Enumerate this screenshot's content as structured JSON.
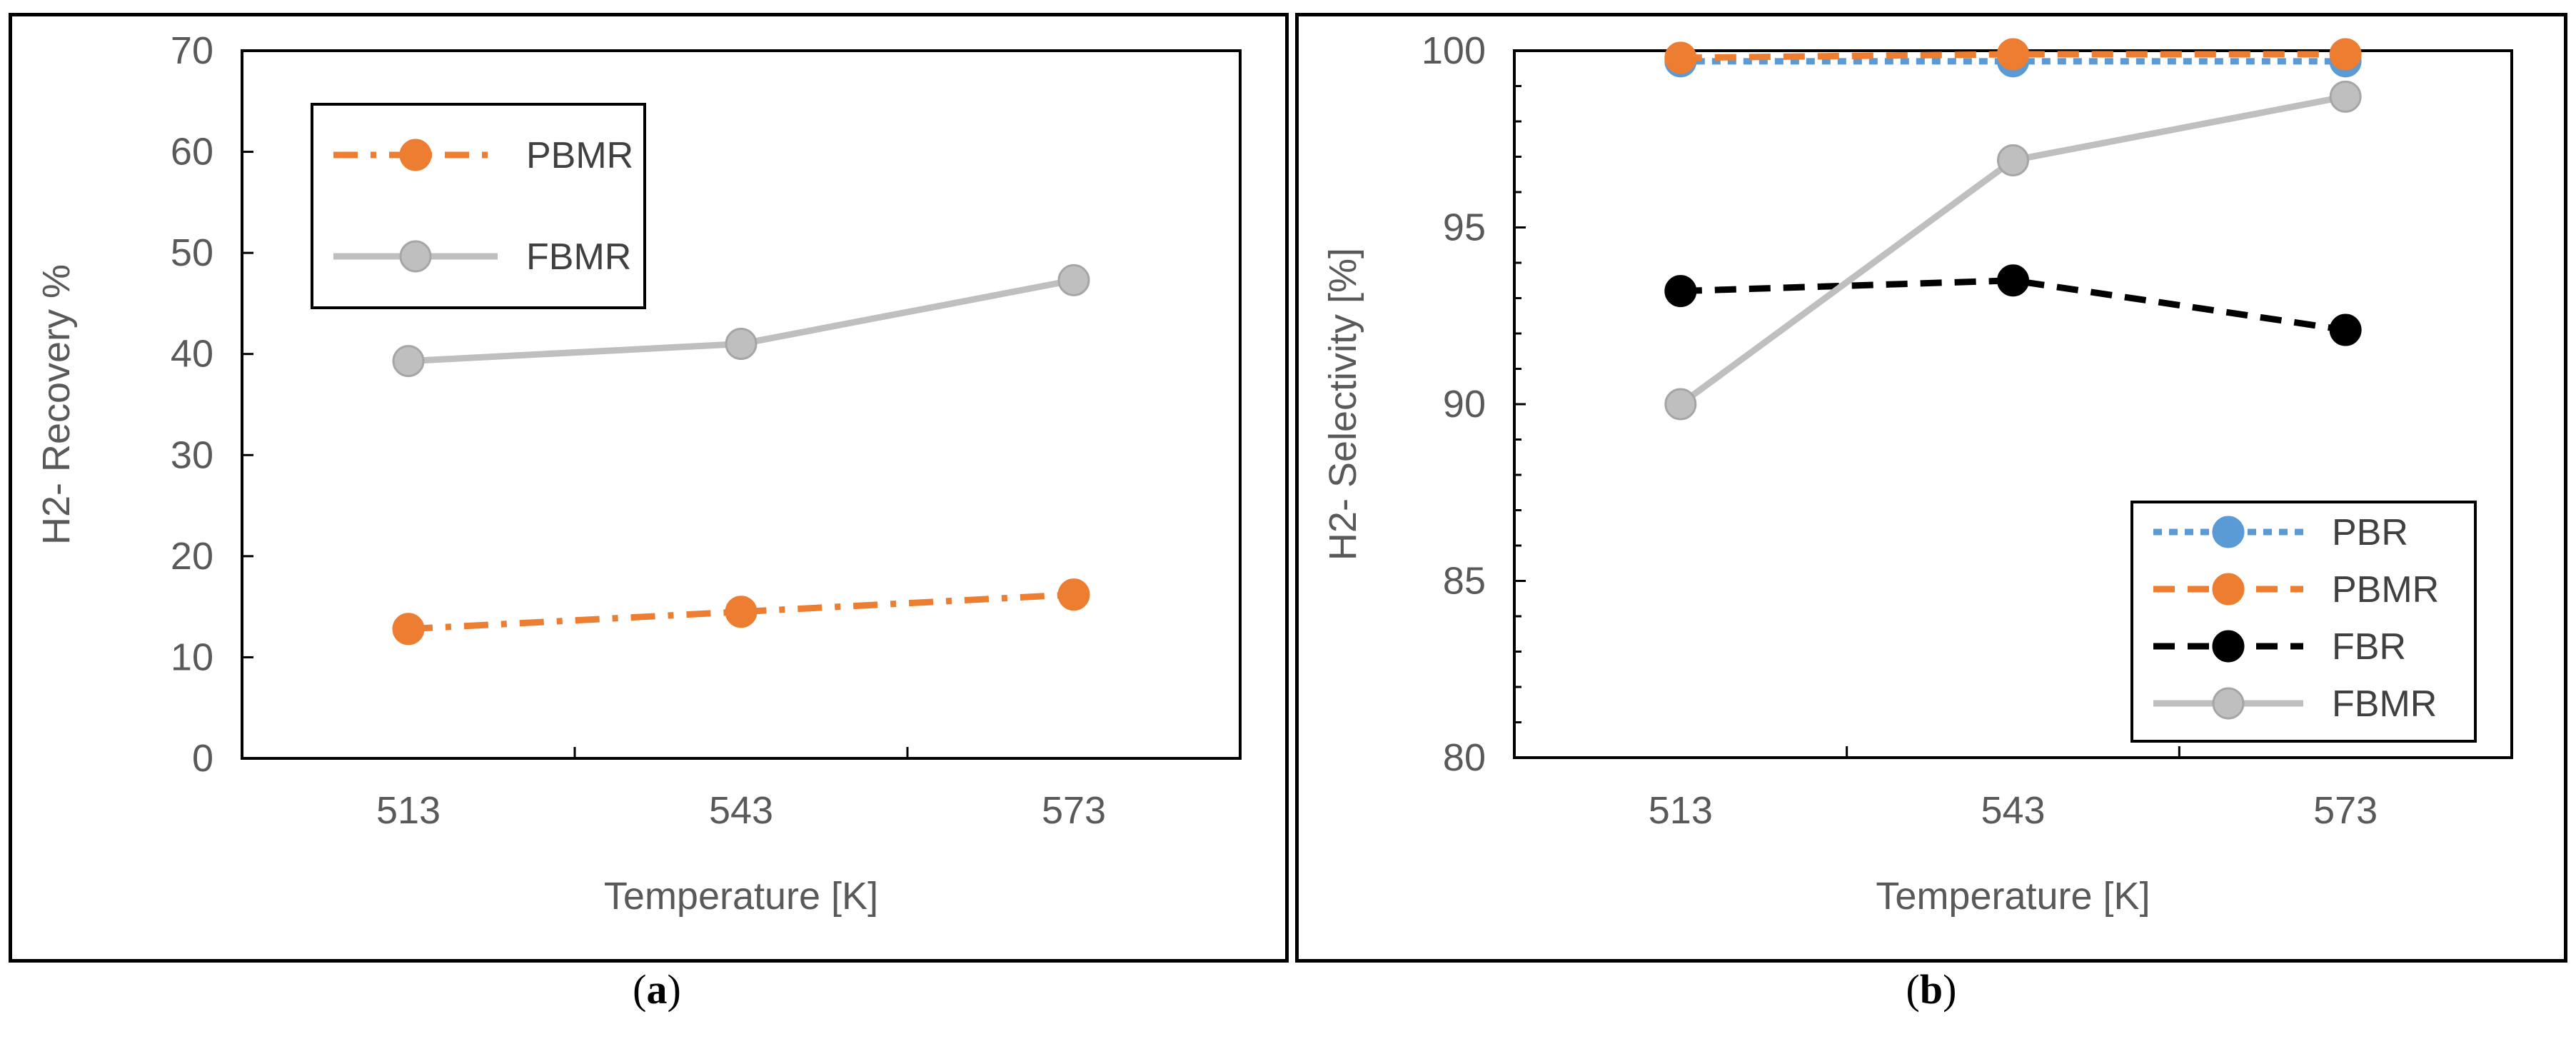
{
  "chart_data": [
    {
      "id": "a",
      "type": "line",
      "caption": "(a)",
      "caption_letter": "a",
      "xlabel": "Temperature [K]",
      "ylabel": "H2- Recovery %",
      "categories": [
        "513",
        "543",
        "573"
      ],
      "ylim": [
        0,
        70
      ],
      "yticks": [
        0,
        10,
        20,
        30,
        40,
        50,
        60,
        70
      ],
      "legend_position": "top-left",
      "series": [
        {
          "name": "PBMR",
          "values": [
            12.8,
            14.5,
            16.2
          ],
          "color": "#ED7D31",
          "dash": "dashdot",
          "marker": "circle"
        },
        {
          "name": "FBMR",
          "values": [
            39.3,
            41.0,
            47.3
          ],
          "color": "#BFBFBF",
          "dash": "solid",
          "marker": "circle"
        }
      ]
    },
    {
      "id": "b",
      "type": "line",
      "caption": "(b)",
      "caption_letter": "b",
      "xlabel": "Temperature [K]",
      "ylabel": "H2- Selectivity [%]",
      "categories": [
        "513",
        "543",
        "573"
      ],
      "ylim": [
        80,
        100
      ],
      "yticks": [
        80,
        85,
        90,
        95,
        100
      ],
      "legend_position": "bottom-right",
      "series": [
        {
          "name": "PBR",
          "values": [
            99.7,
            99.7,
            99.7
          ],
          "color": "#5B9BD5",
          "dash": "dotted",
          "marker": "circle"
        },
        {
          "name": "PBMR",
          "values": [
            99.8,
            99.9,
            99.9
          ],
          "color": "#ED7D31",
          "dash": "dashed",
          "marker": "circle"
        },
        {
          "name": "FBR",
          "values": [
            93.2,
            93.5,
            92.1
          ],
          "color": "#000000",
          "dash": "dashed",
          "marker": "circle"
        },
        {
          "name": "FBMR",
          "values": [
            90.0,
            96.9,
            98.7
          ],
          "color": "#BFBFBF",
          "dash": "solid",
          "marker": "circle"
        }
      ]
    }
  ]
}
